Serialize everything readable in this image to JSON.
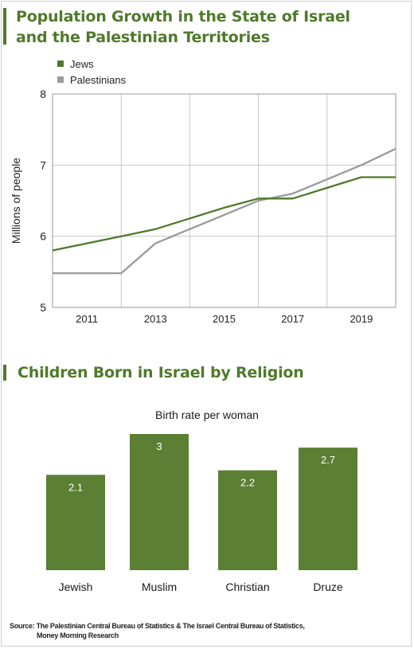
{
  "line_chart": {
    "title_line1": "Population Growth in the State of Israel",
    "title_line2": "and the Palestinian Territories",
    "ylabel": "Millions of people",
    "legend": [
      {
        "label": "Jews",
        "color": "#4f7a2b"
      },
      {
        "label": "Palestinians",
        "color": "#9a9a9a"
      }
    ]
  },
  "bar_chart": {
    "title": "Children Born in Israel by Religion",
    "subtitle": "Birth rate per woman"
  },
  "source": {
    "line1": "Source: The Palestinian Central Bureau of Statistics & The Israel Central Bureau of Statistics,",
    "line2": "Money Morning Research"
  },
  "chart_data": [
    {
      "type": "line",
      "title": "Population Growth in the State of Israel and the Palestinian Territories",
      "ylabel": "Millions of people",
      "xlabel": "",
      "x": [
        2010,
        2011,
        2012,
        2013,
        2014,
        2015,
        2016,
        2017,
        2018,
        2019,
        2020
      ],
      "x_ticks": [
        2011,
        2013,
        2015,
        2017,
        2019
      ],
      "xlim": [
        2010,
        2020
      ],
      "ylim": [
        5,
        8
      ],
      "y_ticks": [
        5,
        6,
        7,
        8
      ],
      "grid": true,
      "legend_position": "top-left",
      "series": [
        {
          "name": "Jews",
          "color": "#4f7a2b",
          "values": [
            5.8,
            5.9,
            6.0,
            6.1,
            6.25,
            6.4,
            6.53,
            6.53,
            6.68,
            6.83,
            6.83
          ]
        },
        {
          "name": "Palestinians",
          "color": "#9a9a9a",
          "values": [
            5.48,
            5.48,
            5.48,
            5.9,
            6.1,
            6.3,
            6.5,
            6.6,
            6.8,
            7.0,
            7.23
          ]
        }
      ]
    },
    {
      "type": "bar",
      "title": "Children Born in Israel by Religion",
      "subtitle": "Birth rate per woman",
      "categories": [
        "Jewish",
        "Muslim",
        "Christian",
        "Druze"
      ],
      "values": [
        2.1,
        3,
        2.2,
        2.7
      ],
      "value_labels": [
        "2.1",
        "3",
        "2.2",
        "2.7"
      ],
      "color": "#5b7f33",
      "ylim": [
        0,
        3
      ]
    }
  ]
}
